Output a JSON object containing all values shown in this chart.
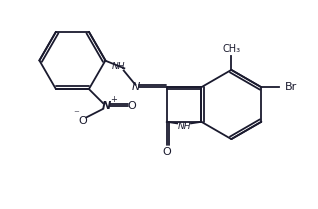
{
  "bg_color": "#ffffff",
  "line_color": "#1a1a2e",
  "text_color": "#1a1a2e",
  "figsize": [
    3.18,
    2.09
  ],
  "dpi": 100,
  "xlim": [
    0,
    10
  ],
  "ylim": [
    0,
    6.6
  ]
}
